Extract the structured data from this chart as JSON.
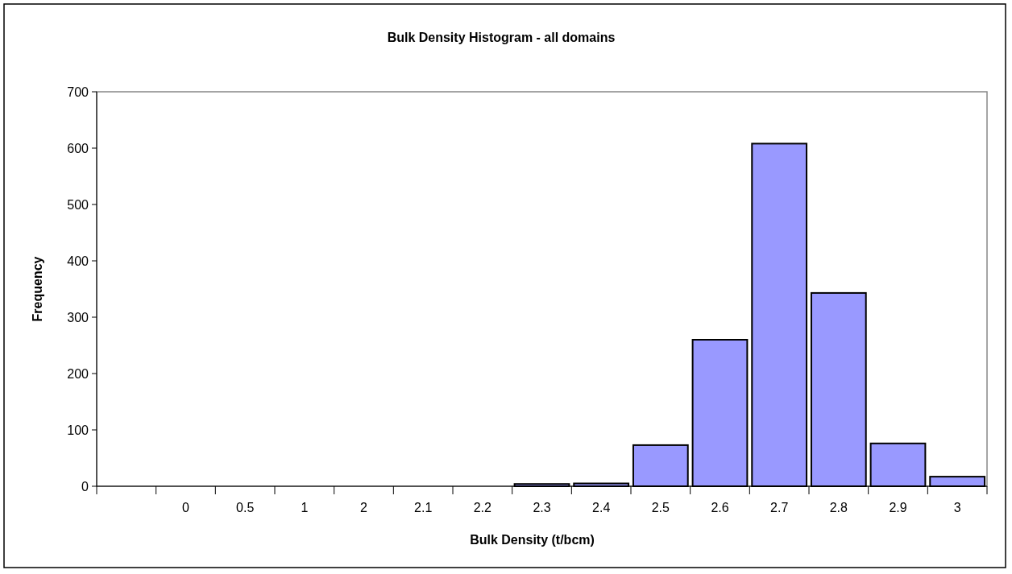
{
  "chart_data": {
    "type": "bar",
    "title": "Bulk Density Histogram - all domains",
    "xlabel": "Bulk Density (t/bcm)",
    "ylabel": "Frequency",
    "categories": [
      null,
      "0",
      "0.5",
      "1",
      "2",
      "2.1",
      "2.2",
      "2.3",
      "2.4",
      "2.5",
      "2.6",
      "2.7",
      "2.8",
      "2.9",
      "3"
    ],
    "values": [
      0,
      0,
      0,
      0,
      0,
      0,
      0,
      4,
      5,
      73,
      260,
      608,
      343,
      76,
      17
    ],
    "color": "#9999ff",
    "ylim": [
      0,
      700
    ],
    "yticks": [
      0,
      100,
      200,
      300,
      400,
      500,
      600,
      700
    ],
    "grid": false
  }
}
